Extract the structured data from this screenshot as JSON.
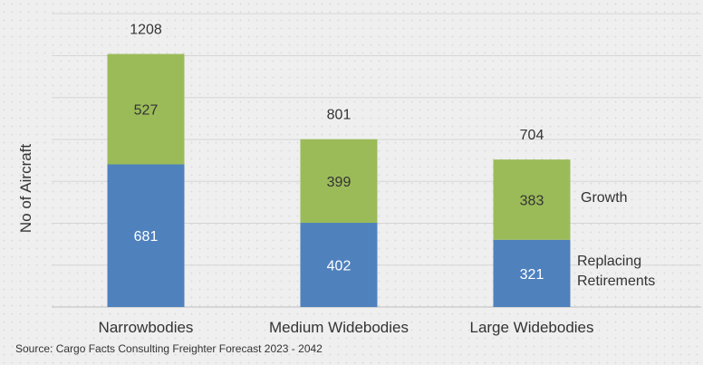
{
  "chart_data": {
    "type": "bar",
    "stacked": true,
    "categories": [
      "Narrowbodies",
      "Medium Widebodies",
      "Large Widebodies"
    ],
    "series": [
      {
        "name": "Replacing Retirements",
        "values": [
          681,
          402,
          321
        ],
        "color": "#4f81bd"
      },
      {
        "name": "Growth",
        "values": [
          527,
          399,
          383
        ],
        "color": "#9bbb59"
      }
    ],
    "totals": [
      1208,
      801,
      704
    ],
    "ylabel": "No of Aircraft",
    "xlabel": "",
    "ylim": [
      0,
      1400
    ],
    "grid": true,
    "legend_placement": "right, beside last bar",
    "legend_labels": {
      "growth": "Growth",
      "retire_line1": "Replacing",
      "retire_line2": "Retirements"
    }
  },
  "source": "Source: Cargo Facts Consulting Freighter Forecast 2023 - 2042"
}
